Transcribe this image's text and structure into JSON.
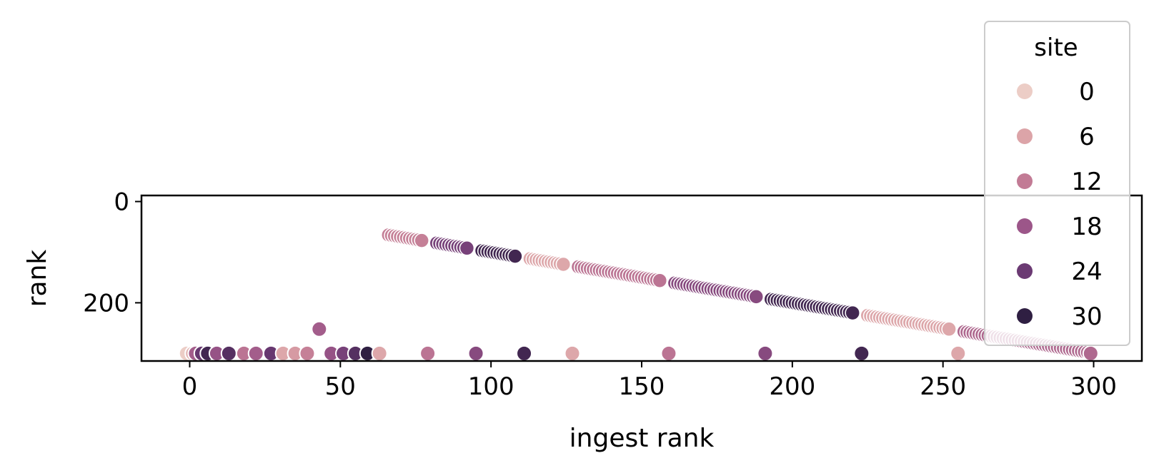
{
  "chart_data": {
    "type": "scatter",
    "title": "",
    "xlabel": "ingest rank",
    "ylabel": "rank",
    "xlim": [
      -16,
      316
    ],
    "ylim": [
      -12,
      315
    ],
    "y_inverted": true,
    "x_ticks": [
      0,
      50,
      100,
      150,
      200,
      250,
      300
    ],
    "y_ticks": [
      0,
      200
    ],
    "grid": false,
    "legend": {
      "title": "site",
      "placement": "top-right",
      "entries": [
        {
          "label": "0",
          "color": "#eccdc6"
        },
        {
          "label": "6",
          "color": "#dca4a8"
        },
        {
          "label": "12",
          "color": "#c27b95"
        },
        {
          "label": "18",
          "color": "#9c5689"
        },
        {
          "label": "24",
          "color": "#6b3a73"
        },
        {
          "label": "30",
          "color": "#2f1f42"
        }
      ]
    },
    "hue_range": [
      0,
      32
    ],
    "series": [
      {
        "description": "points collapsed at bottom row",
        "points": [
          {
            "x": -1,
            "y": 300,
            "site": 0
          },
          {
            "x": 1,
            "y": 300,
            "site": 4
          },
          {
            "x": 2,
            "y": 300,
            "site": 18
          },
          {
            "x": 4,
            "y": 300,
            "site": 26
          },
          {
            "x": 6,
            "y": 300,
            "site": 30
          },
          {
            "x": 9,
            "y": 300,
            "site": 20
          },
          {
            "x": 13,
            "y": 300,
            "site": 28
          },
          {
            "x": 18,
            "y": 300,
            "site": 14
          },
          {
            "x": 22,
            "y": 300,
            "site": 18
          },
          {
            "x": 27,
            "y": 300,
            "site": 26
          },
          {
            "x": 31,
            "y": 300,
            "site": 6
          },
          {
            "x": 35,
            "y": 300,
            "site": 8
          },
          {
            "x": 39,
            "y": 300,
            "site": 12
          },
          {
            "x": 47,
            "y": 300,
            "site": 20
          },
          {
            "x": 51,
            "y": 300,
            "site": 24
          },
          {
            "x": 55,
            "y": 300,
            "site": 28
          },
          {
            "x": 59,
            "y": 300,
            "site": 32
          },
          {
            "x": 63,
            "y": 300,
            "site": 6
          },
          {
            "x": 79,
            "y": 300,
            "site": 14
          },
          {
            "x": 95,
            "y": 300,
            "site": 22
          },
          {
            "x": 111,
            "y": 300,
            "site": 30
          },
          {
            "x": 127,
            "y": 300,
            "site": 6
          },
          {
            "x": 159,
            "y": 300,
            "site": 14
          },
          {
            "x": 191,
            "y": 300,
            "site": 22
          },
          {
            "x": 223,
            "y": 300,
            "site": 30
          },
          {
            "x": 255,
            "y": 300,
            "site": 6
          },
          {
            "x": 299,
            "y": 300,
            "site": 16
          },
          {
            "x": 43,
            "y": 252,
            "site": 18
          }
        ]
      },
      {
        "description": "diagonal runs of points (rank rising with ingest rank)",
        "runs": [
          {
            "x_start": 66,
            "x_end": 77,
            "site": 12
          },
          {
            "x_start": 82,
            "x_end": 92,
            "site": 24
          },
          {
            "x_start": 97,
            "x_end": 108,
            "site": 30
          },
          {
            "x_start": 113,
            "x_end": 124,
            "site": 6
          },
          {
            "x_start": 129,
            "x_end": 156,
            "site": 14
          },
          {
            "x_start": 161,
            "x_end": 188,
            "site": 22
          },
          {
            "x_start": 193,
            "x_end": 220,
            "site": 30
          },
          {
            "x_start": 225,
            "x_end": 252,
            "site": 6
          },
          {
            "x_start": 257,
            "x_end": 299,
            "site": 16
          }
        ]
      }
    ]
  }
}
